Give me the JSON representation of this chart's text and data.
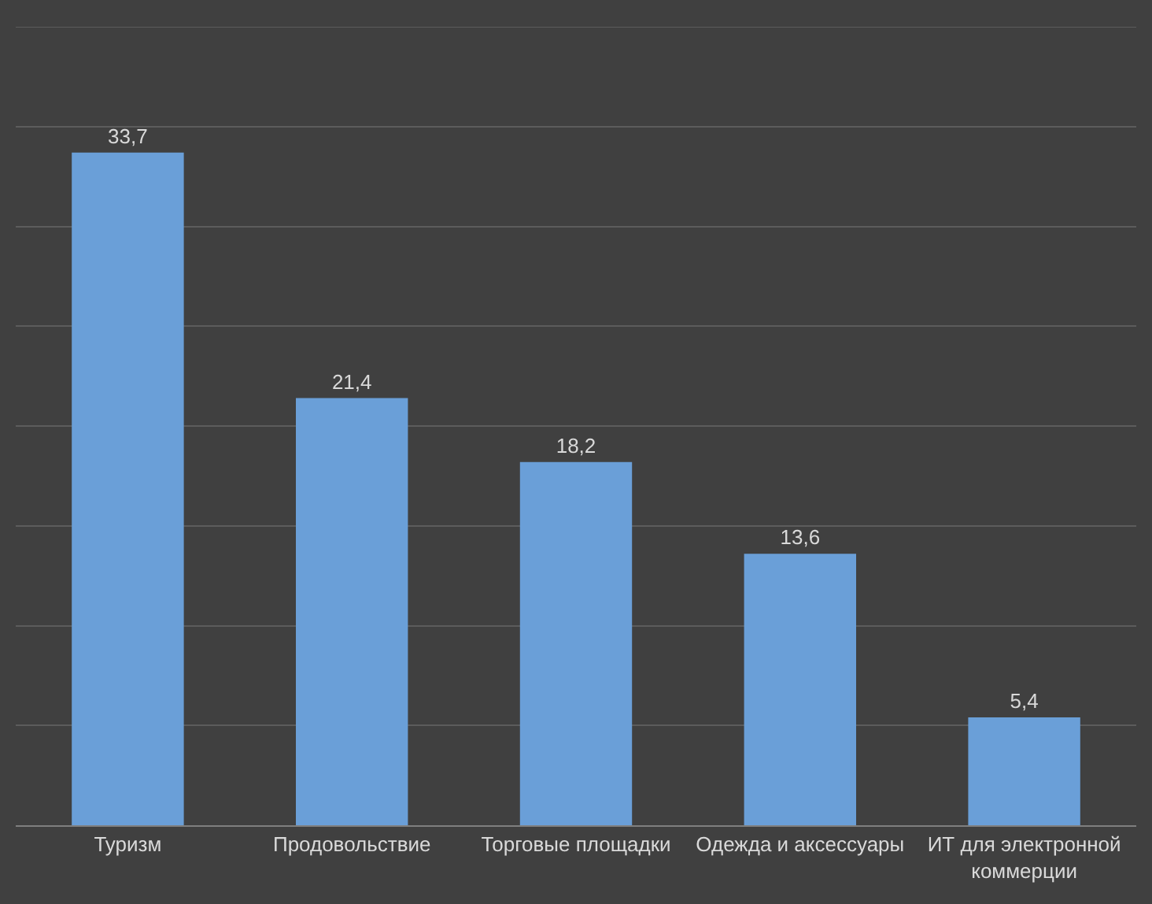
{
  "chart_data": {
    "type": "bar",
    "categories": [
      "Туризм",
      "Продовольствие",
      "Торговые площадки",
      "Одежда и аксессуары",
      "ИТ для электронной коммерции"
    ],
    "values": [
      33.7,
      21.4,
      18.2,
      13.6,
      5.4
    ],
    "value_labels": [
      "33,7",
      "21,4",
      "18,2",
      "13,6",
      "5,4"
    ],
    "color": "#6a9fd8",
    "ylim": [
      0,
      40
    ],
    "yticks": [
      {
        "value": 0,
        "label": null
      },
      {
        "value": 5,
        "label": null
      },
      {
        "value": 10,
        "label": null
      },
      {
        "value": 15,
        "label": null
      },
      {
        "value": 20,
        "label": null
      },
      {
        "value": 25,
        "label": null
      },
      {
        "value": 30,
        "label": null
      },
      {
        "value": 35,
        "label": null
      }
    ],
    "grid": "y",
    "tick_labels": "x"
  }
}
